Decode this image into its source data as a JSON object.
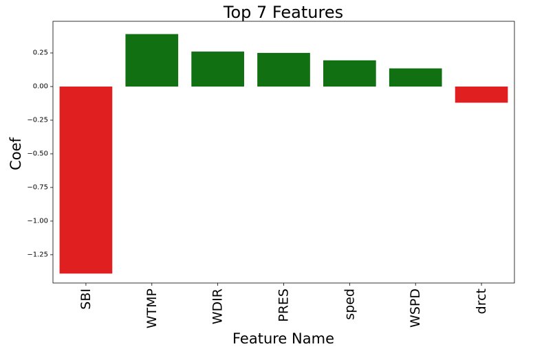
{
  "chart_data": {
    "type": "bar",
    "title": "Top 7 Features",
    "xlabel": "Feature Name",
    "ylabel": "Coef",
    "categories": [
      "SBI",
      "WTMP",
      "WDIR",
      "PRES",
      "sped",
      "WSPD",
      "drct"
    ],
    "values": [
      -1.39,
      0.39,
      0.26,
      0.25,
      0.195,
      0.135,
      -0.12
    ],
    "colors": [
      "#e02020",
      "#117011",
      "#117011",
      "#117011",
      "#117011",
      "#117011",
      "#e02020"
    ],
    "positive_color": "#117011",
    "negative_color": "#e02020",
    "ylim": [
      -1.46,
      0.485
    ],
    "yticks": [
      -1.25,
      -1.0,
      -0.75,
      -0.5,
      -0.25,
      0.0,
      0.25
    ],
    "ytick_labels": [
      "−1.25",
      "−1.00",
      "−0.75",
      "−0.50",
      "−0.25",
      "0.00",
      "0.25"
    ],
    "grid": false,
    "legend": "none"
  }
}
